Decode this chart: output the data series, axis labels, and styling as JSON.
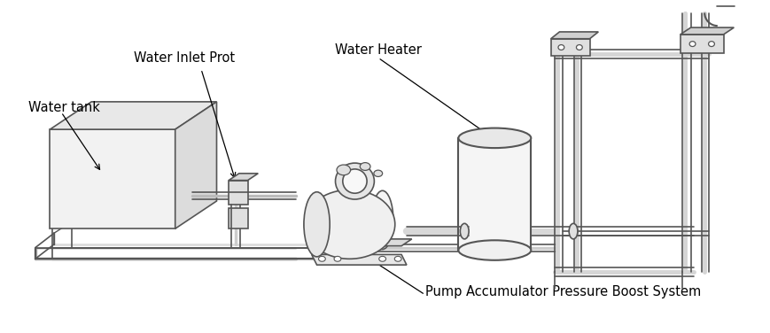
{
  "background_color": "#ffffff",
  "line_color": "#555555",
  "line_color_dark": "#333333",
  "line_width": 1.2,
  "pipe_lw": 2.5,
  "labels": {
    "water_tank": "Water tank",
    "water_inlet": "Water Inlet Prot",
    "water_heater": "Water Heater",
    "pump_system": "Pump Accumulator Pressure Boost System"
  },
  "font_size": 10.5
}
